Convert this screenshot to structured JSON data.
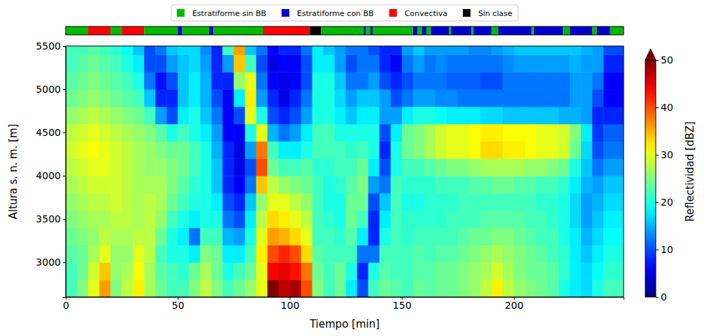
{
  "chart_data": {
    "type": "heatmap",
    "x_label": "Tiempo [min]",
    "y_label": "Altura s. n. m. [m]",
    "xlim": [
      0,
      249
    ],
    "ylim": [
      2600,
      5500
    ],
    "xticks": [
      0,
      50,
      100,
      150,
      200
    ],
    "yticks": [
      3000,
      3500,
      4000,
      4500,
      5000,
      5500
    ],
    "legend": "top",
    "x_bins": [
      0,
      5,
      10,
      15,
      20,
      25,
      30,
      35,
      40,
      45,
      50,
      55,
      60,
      65,
      70,
      75,
      80,
      85,
      90,
      95,
      100,
      105,
      110,
      115,
      120,
      125,
      130,
      135,
      140,
      145,
      150,
      155,
      160,
      165,
      170,
      175,
      180,
      185,
      190,
      195,
      200,
      205,
      210,
      215,
      220,
      225,
      230,
      235,
      240,
      249
    ],
    "y_bins": [
      2600,
      2800,
      3000,
      3200,
      3400,
      3600,
      3800,
      4000,
      4200,
      4400,
      4600,
      4800,
      5000,
      5200,
      5400,
      5500
    ],
    "values": [
      [
        22,
        25,
        30,
        36,
        25,
        28,
        32,
        27,
        24,
        22,
        22,
        25,
        28,
        25,
        22,
        24,
        26,
        30,
        50,
        47,
        48,
        40,
        25,
        22,
        24,
        18,
        10,
        22,
        24,
        23,
        22,
        24,
        23,
        24,
        24,
        25,
        26,
        28,
        32,
        28,
        26,
        25,
        24,
        23,
        20,
        18,
        17,
        20,
        22
      ],
      [
        22,
        24,
        29,
        34,
        26,
        27,
        31,
        27,
        23,
        22,
        21,
        24,
        27,
        24,
        20,
        22,
        24,
        30,
        44,
        45,
        43,
        38,
        24,
        22,
        24,
        20,
        8,
        20,
        23,
        22,
        22,
        23,
        23,
        24,
        24,
        25,
        26,
        27,
        29,
        27,
        25,
        24,
        24,
        23,
        21,
        18,
        17,
        19,
        21
      ],
      [
        23,
        24,
        27,
        30,
        26,
        26,
        30,
        28,
        22,
        20,
        20,
        18,
        25,
        24,
        18,
        18,
        22,
        32,
        40,
        42,
        40,
        33,
        23,
        22,
        22,
        22,
        12,
        12,
        22,
        22,
        22,
        23,
        22,
        23,
        23,
        24,
        25,
        26,
        27,
        26,
        25,
        24,
        23,
        22,
        21,
        18,
        16,
        18,
        20
      ],
      [
        24,
        25,
        26,
        28,
        27,
        27,
        28,
        28,
        24,
        20,
        18,
        12,
        22,
        22,
        15,
        14,
        20,
        30,
        36,
        35,
        33,
        30,
        22,
        22,
        21,
        23,
        18,
        8,
        20,
        22,
        21,
        22,
        22,
        22,
        22,
        23,
        24,
        24,
        25,
        25,
        24,
        23,
        22,
        22,
        20,
        18,
        15,
        17,
        19
      ],
      [
        25,
        26,
        27,
        27,
        28,
        28,
        27,
        28,
        26,
        22,
        20,
        18,
        20,
        20,
        12,
        10,
        18,
        28,
        33,
        32,
        30,
        28,
        22,
        21,
        20,
        24,
        22,
        8,
        18,
        22,
        21,
        21,
        21,
        21,
        22,
        22,
        22,
        23,
        23,
        23,
        23,
        22,
        22,
        21,
        20,
        17,
        14,
        16,
        18
      ],
      [
        26,
        27,
        28,
        28,
        29,
        28,
        27,
        28,
        27,
        24,
        22,
        20,
        20,
        18,
        10,
        8,
        16,
        26,
        30,
        30,
        28,
        26,
        22,
        20,
        20,
        24,
        24,
        10,
        16,
        22,
        20,
        20,
        21,
        21,
        21,
        22,
        22,
        22,
        22,
        22,
        22,
        22,
        21,
        21,
        20,
        17,
        14,
        15,
        17
      ],
      [
        27,
        28,
        29,
        29,
        29,
        28,
        27,
        27,
        27,
        25,
        23,
        21,
        20,
        16,
        8,
        6,
        12,
        34,
        28,
        26,
        25,
        24,
        22,
        20,
        21,
        23,
        25,
        14,
        12,
        22,
        21,
        21,
        21,
        22,
        22,
        22,
        23,
        23,
        24,
        24,
        23,
        23,
        22,
        22,
        21,
        18,
        15,
        14,
        16
      ],
      [
        28,
        29,
        30,
        30,
        29,
        28,
        27,
        26,
        26,
        25,
        24,
        22,
        20,
        16,
        8,
        5,
        10,
        40,
        24,
        22,
        22,
        23,
        21,
        21,
        22,
        22,
        24,
        18,
        10,
        20,
        22,
        22,
        23,
        24,
        25,
        25,
        26,
        27,
        27,
        27,
        27,
        26,
        26,
        25,
        24,
        20,
        16,
        12,
        14
      ],
      [
        29,
        30,
        31,
        30,
        29,
        28,
        27,
        26,
        25,
        24,
        24,
        22,
        20,
        15,
        8,
        5,
        14,
        38,
        22,
        18,
        18,
        20,
        22,
        22,
        22,
        21,
        22,
        20,
        8,
        20,
        24,
        25,
        27,
        29,
        30,
        30,
        31,
        33,
        33,
        32,
        32,
        31,
        30,
        30,
        29,
        24,
        17,
        10,
        12
      ],
      [
        28,
        29,
        30,
        29,
        28,
        27,
        26,
        25,
        23,
        20,
        22,
        20,
        18,
        14,
        6,
        6,
        20,
        30,
        15,
        12,
        14,
        18,
        22,
        22,
        20,
        20,
        20,
        20,
        10,
        18,
        24,
        25,
        27,
        29,
        30,
        30,
        31,
        32,
        32,
        31,
        31,
        31,
        30,
        30,
        29,
        25,
        18,
        9,
        11
      ],
      [
        26,
        27,
        28,
        27,
        26,
        25,
        24,
        22,
        14,
        10,
        18,
        20,
        16,
        12,
        6,
        10,
        30,
        20,
        10,
        8,
        10,
        14,
        20,
        20,
        18,
        16,
        18,
        18,
        14,
        14,
        18,
        20,
        20,
        19,
        18,
        18,
        18,
        17,
        17,
        16,
        16,
        16,
        16,
        16,
        15,
        15,
        14,
        8,
        8
      ],
      [
        24,
        25,
        26,
        25,
        24,
        23,
        22,
        16,
        8,
        8,
        16,
        18,
        15,
        10,
        6,
        18,
        32,
        14,
        8,
        5,
        8,
        12,
        20,
        20,
        17,
        14,
        16,
        16,
        14,
        10,
        12,
        14,
        14,
        13,
        13,
        12,
        12,
        12,
        12,
        12,
        12,
        12,
        12,
        12,
        12,
        14,
        14,
        10,
        6
      ],
      [
        23,
        24,
        25,
        24,
        23,
        22,
        20,
        12,
        7,
        10,
        16,
        18,
        15,
        8,
        8,
        26,
        30,
        12,
        6,
        5,
        6,
        10,
        20,
        20,
        16,
        12,
        12,
        14,
        10,
        8,
        10,
        12,
        12,
        12,
        11,
        11,
        11,
        10,
        10,
        12,
        12,
        12,
        12,
        12,
        12,
        14,
        14,
        12,
        6
      ],
      [
        22,
        23,
        24,
        23,
        22,
        20,
        18,
        10,
        10,
        14,
        16,
        17,
        14,
        8,
        14,
        34,
        22,
        10,
        5,
        6,
        6,
        10,
        18,
        18,
        14,
        10,
        12,
        12,
        8,
        6,
        12,
        14,
        12,
        13,
        12,
        12,
        12,
        12,
        12,
        13,
        14,
        14,
        14,
        14,
        14,
        15,
        14,
        14,
        8
      ],
      [
        22,
        22,
        23,
        22,
        21,
        19,
        16,
        10,
        12,
        16,
        17,
        17,
        13,
        8,
        22,
        36,
        16,
        12,
        6,
        8,
        8,
        12,
        18,
        16,
        14,
        12,
        12,
        10,
        8,
        8,
        14,
        16,
        14,
        14,
        14,
        14,
        13,
        13,
        14,
        15,
        16,
        16,
        16,
        16,
        16,
        16,
        15,
        14,
        10
      ]
    ],
    "colorbar": {
      "label": "Reflectividad [dBZ]",
      "range": [
        0,
        50
      ],
      "ticks": [
        0,
        10,
        20,
        30,
        40,
        50
      ]
    },
    "classification": {
      "classes": [
        {
          "name": "Estratiforme sin BB",
          "color": "#00bb00"
        },
        {
          "name": "Estratiforme con BB",
          "color": "#0000cc"
        },
        {
          "name": "Convectiva",
          "color": "#ff0000"
        },
        {
          "name": "Sin clase",
          "color": "#000000"
        }
      ],
      "segments": [
        {
          "start": 0,
          "end": 10,
          "class": "Estratiforme sin BB"
        },
        {
          "start": 10,
          "end": 20,
          "class": "Convectiva"
        },
        {
          "start": 20,
          "end": 25,
          "class": "Estratiforme sin BB"
        },
        {
          "start": 25,
          "end": 35,
          "class": "Convectiva"
        },
        {
          "start": 35,
          "end": 50,
          "class": "Estratiforme sin BB"
        },
        {
          "start": 50,
          "end": 52,
          "class": "Estratiforme con BB"
        },
        {
          "start": 52,
          "end": 64,
          "class": "Estratiforme sin BB"
        },
        {
          "start": 64,
          "end": 66,
          "class": "Estratiforme con BB"
        },
        {
          "start": 66,
          "end": 88,
          "class": "Estratiforme sin BB"
        },
        {
          "start": 88,
          "end": 109,
          "class": "Convectiva"
        },
        {
          "start": 109,
          "end": 114,
          "class": "Sin clase"
        },
        {
          "start": 114,
          "end": 133,
          "class": "Estratiforme sin BB"
        },
        {
          "start": 133,
          "end": 134,
          "class": "Estratiforme con BB"
        },
        {
          "start": 134,
          "end": 136,
          "class": "Estratiforme sin BB"
        },
        {
          "start": 136,
          "end": 137,
          "class": "Estratiforme con BB"
        },
        {
          "start": 137,
          "end": 155,
          "class": "Estratiforme sin BB"
        },
        {
          "start": 155,
          "end": 157,
          "class": "Estratiforme con BB"
        },
        {
          "start": 157,
          "end": 159,
          "class": "Estratiforme sin BB"
        },
        {
          "start": 159,
          "end": 161,
          "class": "Estratiforme con BB"
        },
        {
          "start": 161,
          "end": 163,
          "class": "Estratiforme sin BB"
        },
        {
          "start": 163,
          "end": 171,
          "class": "Estratiforme con BB"
        },
        {
          "start": 171,
          "end": 172,
          "class": "Estratiforme sin BB"
        },
        {
          "start": 172,
          "end": 181,
          "class": "Estratiforme con BB"
        },
        {
          "start": 181,
          "end": 182,
          "class": "Estratiforme sin BB"
        },
        {
          "start": 182,
          "end": 190,
          "class": "Estratiforme con BB"
        },
        {
          "start": 190,
          "end": 193,
          "class": "Estratiforme sin BB"
        },
        {
          "start": 193,
          "end": 208,
          "class": "Estratiforme con BB"
        },
        {
          "start": 208,
          "end": 209,
          "class": "Estratiforme sin BB"
        },
        {
          "start": 209,
          "end": 222,
          "class": "Estratiforme con BB"
        },
        {
          "start": 222,
          "end": 225,
          "class": "Estratiforme sin BB"
        },
        {
          "start": 225,
          "end": 235,
          "class": "Estratiforme con BB"
        },
        {
          "start": 235,
          "end": 237,
          "class": "Estratiforme sin BB"
        },
        {
          "start": 237,
          "end": 243,
          "class": "Estratiforme con BB"
        },
        {
          "start": 243,
          "end": 249,
          "class": "Estratiforme sin BB"
        }
      ]
    }
  }
}
